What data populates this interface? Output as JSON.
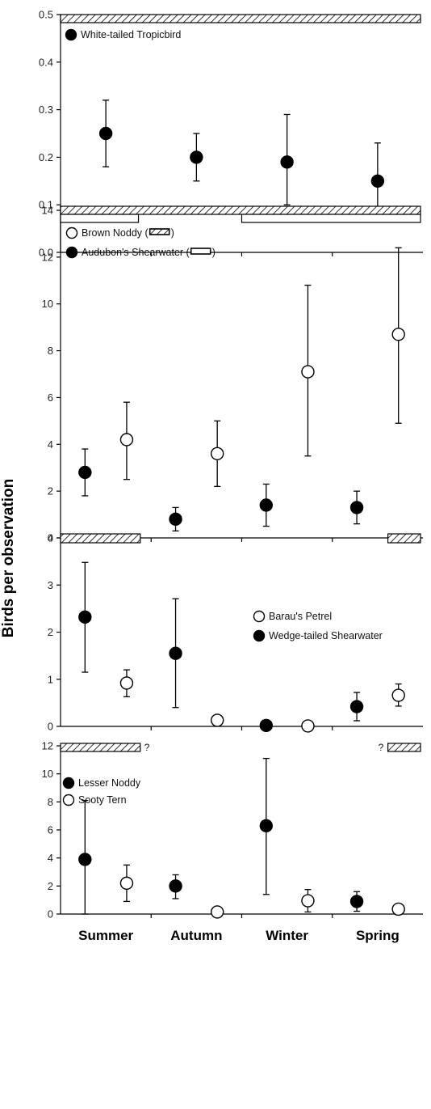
{
  "ylabel": "Birds per observation",
  "categories": [
    "Summer",
    "Autumn",
    "Winter",
    "Spring"
  ],
  "chart_data": [
    {
      "type": "scatter",
      "panel": "top",
      "ylim": [
        0,
        0.5
      ],
      "yticks": [
        "0.0",
        "0.1",
        "0.2",
        "0.3",
        "0.4",
        "0.5"
      ],
      "series": [
        {
          "name": "White-tailed Tropicbird",
          "marker": "filled",
          "x": [
            "Summer",
            "Autumn",
            "Winter",
            "Spring"
          ],
          "values": [
            0.25,
            0.2,
            0.19,
            0.15
          ],
          "err_low": [
            0.18,
            0.15,
            0.1,
            0.07
          ],
          "err_high": [
            0.32,
            0.25,
            0.29,
            0.23
          ]
        }
      ],
      "season_bars": [
        {
          "pattern": "hatched",
          "from": "Summer",
          "to": "Spring"
        }
      ]
    },
    {
      "type": "scatter",
      "panel": "second",
      "ylim": [
        0,
        14
      ],
      "yticks": [
        "0",
        "2",
        "4",
        "6",
        "8",
        "10",
        "12",
        "14"
      ],
      "series": [
        {
          "name": "Brown Noddy (",
          "name_suffix": ")",
          "marker": "open",
          "legend_swatch": "hatched",
          "x": [
            "Summer",
            "Autumn",
            "Winter",
            "Spring"
          ],
          "values": [
            4.2,
            3.6,
            7.1,
            8.7
          ],
          "err_low": [
            2.5,
            2.2,
            3.5,
            4.9
          ],
          "err_high": [
            5.8,
            5.0,
            10.8,
            12.4
          ]
        },
        {
          "name": "Audubon's Shearwater (",
          "name_suffix": ")",
          "marker": "filled",
          "legend_swatch": "open",
          "x": [
            "Summer",
            "Autumn",
            "Winter",
            "Spring"
          ],
          "values": [
            2.8,
            0.8,
            1.4,
            1.3
          ],
          "err_low": [
            1.8,
            0.3,
            0.5,
            0.6
          ],
          "err_high": [
            3.8,
            1.3,
            2.3,
            2.0
          ]
        }
      ],
      "season_bars": [
        {
          "pattern": "hatched",
          "from": "Summer",
          "to": "Spring"
        },
        {
          "pattern": "open",
          "from": "Summer",
          "to": "Summer"
        },
        {
          "pattern": "open",
          "from": "Winter",
          "to": "Spring"
        }
      ]
    },
    {
      "type": "scatter",
      "panel": "third",
      "ylim": [
        0,
        4
      ],
      "yticks": [
        "0",
        "1",
        "2",
        "3",
        "4"
      ],
      "series": [
        {
          "name": "Barau's Petrel",
          "marker": "open",
          "x": [
            "Summer",
            "Autumn",
            "Winter",
            "Spring"
          ],
          "values": [
            0.92,
            0.13,
            0.01,
            0.66
          ],
          "err_low": [
            0.63,
            null,
            null,
            0.43
          ],
          "err_high": [
            1.2,
            null,
            null,
            0.9
          ]
        },
        {
          "name": "Wedge-tailed Shearwater",
          "marker": "filled",
          "x": [
            "Summer",
            "Autumn",
            "Winter",
            "Spring"
          ],
          "values": [
            2.32,
            1.55,
            0.02,
            0.42
          ],
          "err_low": [
            1.15,
            0.4,
            null,
            0.12
          ],
          "err_high": [
            3.48,
            2.71,
            null,
            0.72
          ]
        }
      ],
      "season_bars": [
        {
          "pattern": "hatched",
          "from": "Summer",
          "to": "Summer"
        },
        {
          "pattern": "hatched",
          "from": "Spring",
          "to": "Spring",
          "short": true
        }
      ]
    },
    {
      "type": "scatter",
      "panel": "bottom",
      "ylim": [
        0,
        12
      ],
      "yticks": [
        "0",
        "2",
        "4",
        "6",
        "8",
        "10",
        "12"
      ],
      "series": [
        {
          "name": "Lesser Noddy",
          "marker": "filled",
          "x": [
            "Summer",
            "Autumn",
            "Winter",
            "Spring"
          ],
          "values": [
            3.9,
            2.0,
            6.3,
            0.9
          ],
          "err_low": [
            0.0,
            1.1,
            1.4,
            0.2
          ],
          "err_high": [
            8.1,
            2.8,
            11.1,
            1.6
          ]
        },
        {
          "name": "Sooty Tern",
          "marker": "open",
          "x": [
            "Summer",
            "Autumn",
            "Winter",
            "Spring"
          ],
          "values": [
            2.2,
            0.15,
            0.95,
            0.35
          ],
          "err_low": [
            0.9,
            null,
            0.15,
            null
          ],
          "err_high": [
            3.5,
            null,
            1.75,
            null
          ]
        }
      ],
      "season_bars": [
        {
          "pattern": "hatched",
          "from": "Summer",
          "to": "Summer",
          "mark": "?"
        },
        {
          "pattern": "hatched",
          "from": "Spring",
          "to": "Spring",
          "short": true,
          "mark": "?"
        }
      ]
    }
  ]
}
